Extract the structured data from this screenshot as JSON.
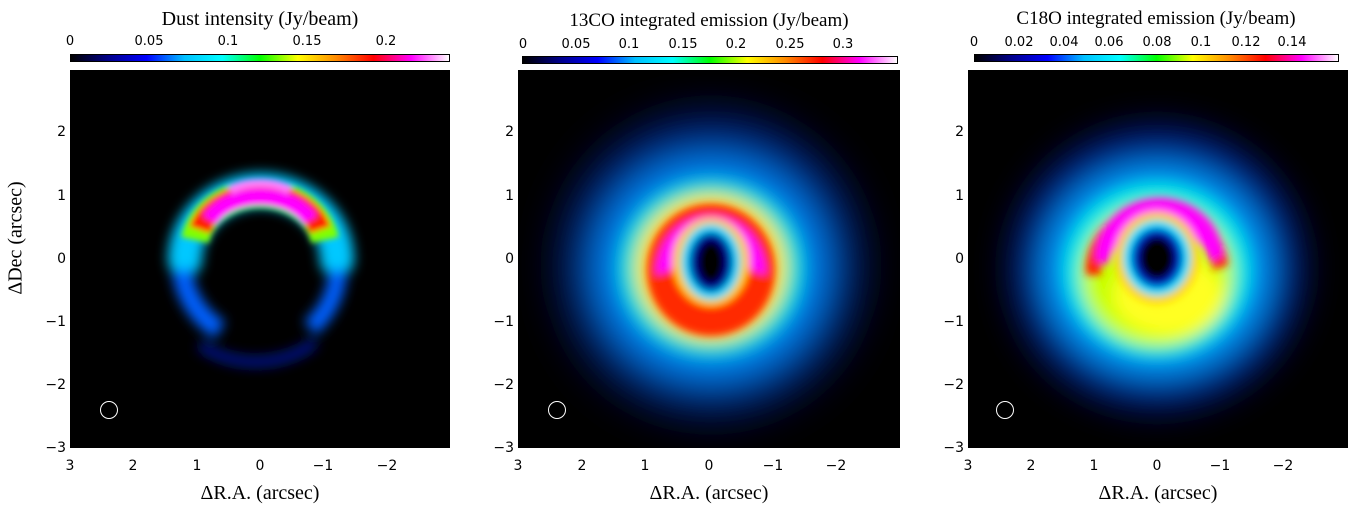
{
  "panels": [
    {
      "title": "Dust intensity (Jy/beam)",
      "colorbar_ticks": [
        "0",
        "0.05",
        "0.1",
        "0.15",
        "0.2"
      ],
      "colorbar_range": [
        0,
        0.24
      ],
      "xlabel": "ΔR.A. (arcsec)",
      "x_ticks": [
        "3",
        "2",
        "1",
        "0",
        "−1",
        "−2"
      ],
      "y_ticks": [
        "2",
        "1",
        "0",
        "−1",
        "−2",
        "−3"
      ],
      "ylabel": "ΔDec (arcsec)"
    },
    {
      "title": "13CO integrated emission (Jy/beam)",
      "colorbar_ticks": [
        "0",
        "0.05",
        "0.1",
        "0.15",
        "0.2",
        "0.25",
        "0.3"
      ],
      "colorbar_range": [
        0,
        0.35
      ],
      "xlabel": "ΔR.A. (arcsec)",
      "x_ticks": [
        "3",
        "2",
        "1",
        "0",
        "−1",
        "−2"
      ],
      "y_ticks": [
        "2",
        "1",
        "0",
        "−1",
        "−2",
        "−3"
      ],
      "ylabel": ""
    },
    {
      "title": "C18O integrated emission (Jy/beam)",
      "colorbar_ticks": [
        "0",
        "0.02",
        "0.04",
        "0.06",
        "0.08",
        "0.1",
        "0.12",
        "0.14"
      ],
      "colorbar_range": [
        0,
        0.16
      ],
      "xlabel": "ΔR.A. (arcsec)",
      "x_ticks": [
        "3",
        "2",
        "1",
        "0",
        "−1",
        "−2"
      ],
      "y_ticks": [
        "2",
        "1",
        "0",
        "−1",
        "−2",
        "−3"
      ],
      "ylabel": ""
    }
  ],
  "colormap": [
    "#000000",
    "#00008b",
    "#0000ff",
    "#00bfff",
    "#00ffff",
    "#00ff00",
    "#ffff00",
    "#ff8c00",
    "#ff0000",
    "#ff00ff",
    "#ffffff"
  ],
  "axis_range_arcsec": [
    -3,
    3
  ]
}
